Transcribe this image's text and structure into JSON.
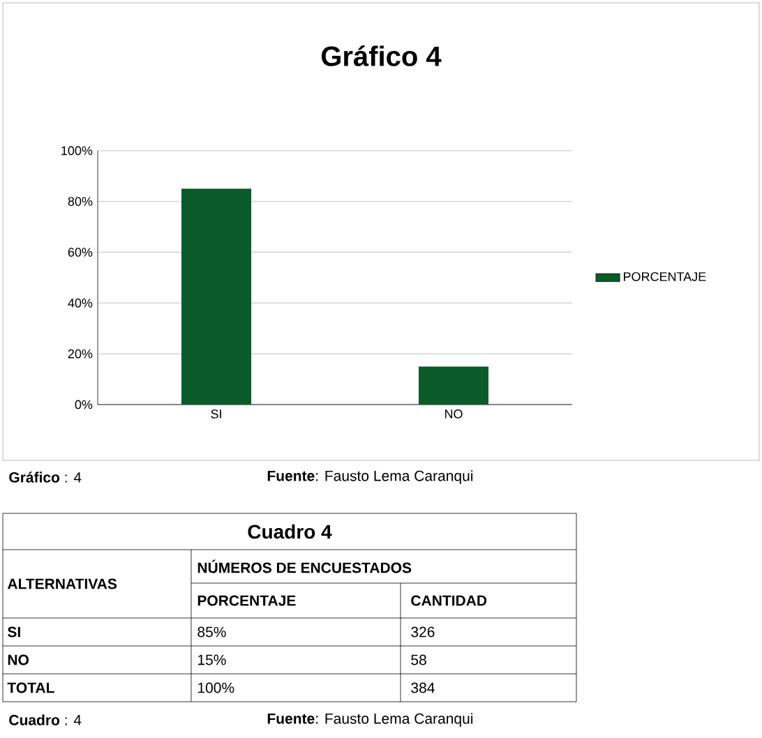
{
  "chart_data": {
    "type": "bar",
    "title": "Gráfico 4",
    "categories": [
      "SI",
      "NO"
    ],
    "series": [
      {
        "name": "PORCENTAJE",
        "color": "#0b5a2a",
        "values": [
          85,
          15
        ]
      }
    ],
    "ylim": [
      0,
      100
    ],
    "yticks": [
      {
        "value": 0,
        "label": "0%"
      },
      {
        "value": 20,
        "label": "20%"
      },
      {
        "value": 40,
        "label": "40%"
      },
      {
        "value": 60,
        "label": "60%"
      },
      {
        "value": 80,
        "label": "80%"
      },
      {
        "value": 100,
        "label": "100%"
      }
    ],
    "grid": "y",
    "legend": "right",
    "annotations": [
      "**Gráfico** :  4",
      "**Fuente**: Fausto Lema Caranqui",
      "Cuadro 4",
      "ALTERNATIVAS",
      "NÚMEROS DE ENCUESTADOS",
      "PORCENTAJE",
      "CANTIDAD",
      "SI",
      "326",
      "NO",
      "58",
      "TOTAL",
      "100%",
      "384",
      "**Cuadro** :  4",
      "**Fuente**: Fausto Lema Caranqui",
      "85%",
      "15%"
    ]
  }
}
